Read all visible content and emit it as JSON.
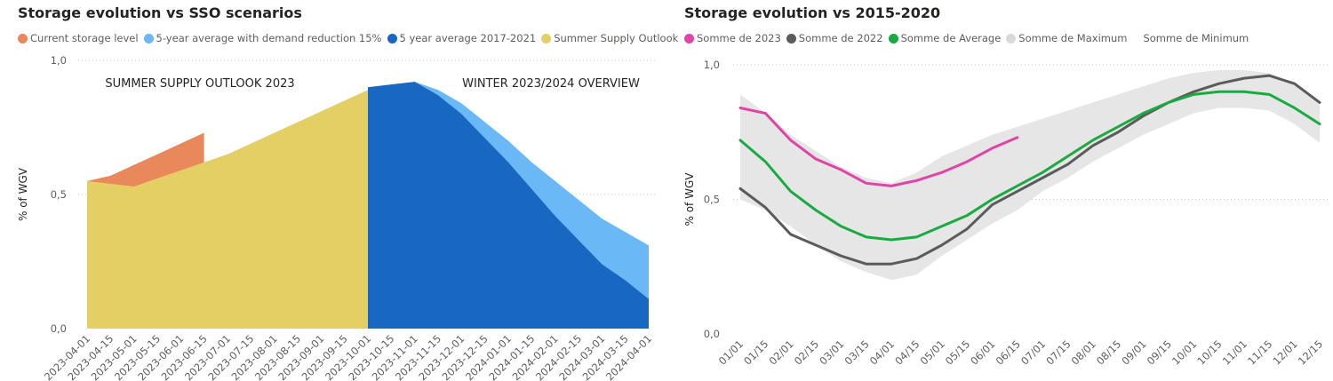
{
  "chart_data": [
    {
      "type": "area",
      "title": "Storage evolution vs SSO scenarios",
      "ylabel": "% of WGV",
      "ylim": [
        0,
        1
      ],
      "yticks": [
        "0,0",
        "0,5",
        "1,0"
      ],
      "annotations": [
        "SUMMER SUPPLY OUTLOOK 2023",
        "WINTER 2023/2024 OVERVIEW"
      ],
      "x": [
        "2023-04-01",
        "2023-04-15",
        "2023-05-01",
        "2023-05-15",
        "2023-06-01",
        "2023-06-15",
        "2023-07-01",
        "2023-07-15",
        "2023-08-01",
        "2023-08-15",
        "2023-09-01",
        "2023-09-15",
        "2023-10-01",
        "2023-10-15",
        "2023-11-01",
        "2023-11-15",
        "2023-12-01",
        "2023-12-15",
        "2024-01-01",
        "2024-01-15",
        "2024-02-01",
        "2024-02-15",
        "2024-03-01",
        "2024-03-15",
        "2024-04-01"
      ],
      "series": [
        {
          "name": "Current storage level",
          "color": "#E8885B",
          "values": [
            0.55,
            0.57,
            0.61,
            0.65,
            0.69,
            0.73,
            null,
            null,
            null,
            null,
            null,
            null,
            null,
            null,
            null,
            null,
            null,
            null,
            null,
            null,
            null,
            null,
            null,
            null,
            null
          ]
        },
        {
          "name": "5-year average with demand reduction 15%",
          "color": "#6BB8F7",
          "values": [
            null,
            null,
            null,
            null,
            null,
            null,
            null,
            null,
            null,
            null,
            null,
            null,
            0.9,
            0.91,
            0.92,
            0.89,
            0.84,
            0.77,
            0.7,
            0.62,
            0.55,
            0.48,
            0.41,
            0.36,
            0.31
          ]
        },
        {
          "name": "5 year average 2017-2021",
          "color": "#1868C1",
          "values": [
            null,
            null,
            null,
            null,
            null,
            null,
            null,
            null,
            null,
            null,
            null,
            null,
            0.9,
            0.91,
            0.92,
            0.87,
            0.8,
            0.71,
            0.62,
            0.52,
            0.42,
            0.33,
            0.24,
            0.18,
            0.11
          ]
        },
        {
          "name": "Summer Supply Outlook",
          "color": "#E4CF65",
          "values": [
            0.55,
            0.54,
            0.53,
            0.56,
            0.59,
            0.62,
            0.65,
            0.69,
            0.73,
            0.77,
            0.81,
            0.85,
            0.89,
            null,
            null,
            null,
            null,
            null,
            null,
            null,
            null,
            null,
            null,
            null,
            null
          ]
        }
      ]
    },
    {
      "type": "line",
      "title": "Storage evolution vs 2015-2020",
      "ylabel": "% of WGV",
      "ylim": [
        0,
        1
      ],
      "yticks": [
        "0,0",
        "0,5",
        "1,0"
      ],
      "x": [
        "01/01",
        "01/15",
        "02/01",
        "02/15",
        "03/01",
        "03/15",
        "04/01",
        "04/15",
        "05/01",
        "05/15",
        "06/01",
        "06/15",
        "07/01",
        "07/15",
        "08/01",
        "08/15",
        "09/01",
        "09/15",
        "10/01",
        "10/15",
        "11/01",
        "11/15",
        "12/01",
        "12/15"
      ],
      "series": [
        {
          "name": "Somme de 2023",
          "color": "#E044A7",
          "values": [
            0.84,
            0.82,
            0.72,
            0.65,
            0.61,
            0.56,
            0.55,
            0.57,
            0.6,
            0.64,
            0.69,
            0.73,
            null,
            null,
            null,
            null,
            null,
            null,
            null,
            null,
            null,
            null,
            null,
            null
          ]
        },
        {
          "name": "Somme de 2022",
          "color": "#5B5B5B",
          "values": [
            0.54,
            0.47,
            0.37,
            0.33,
            0.29,
            0.26,
            0.26,
            0.28,
            0.33,
            0.39,
            0.48,
            0.53,
            0.58,
            0.63,
            0.7,
            0.75,
            0.81,
            0.86,
            0.9,
            0.93,
            0.95,
            0.96,
            0.93,
            0.86
          ]
        },
        {
          "name": "Somme de Average",
          "color": "#1AAB40",
          "values": [
            0.72,
            0.64,
            0.53,
            0.46,
            0.4,
            0.36,
            0.35,
            0.36,
            0.4,
            0.44,
            0.5,
            0.55,
            0.6,
            0.66,
            0.72,
            0.77,
            0.82,
            0.86,
            0.89,
            0.9,
            0.9,
            0.89,
            0.84,
            0.78
          ]
        },
        {
          "name": "Somme de Maximum",
          "color": "#D9D9D9",
          "values": [
            0.89,
            0.82,
            0.74,
            0.68,
            0.62,
            0.58,
            0.56,
            0.6,
            0.66,
            0.7,
            0.74,
            0.77,
            0.8,
            0.83,
            0.86,
            0.89,
            0.92,
            0.95,
            0.97,
            0.98,
            0.98,
            0.97,
            0.93,
            0.86
          ]
        },
        {
          "name": "Somme de Minimum",
          "color": "#D9D9D9",
          "values": [
            0.5,
            0.46,
            0.4,
            0.33,
            0.27,
            0.23,
            0.2,
            0.22,
            0.29,
            0.35,
            0.41,
            0.46,
            0.53,
            0.58,
            0.64,
            0.69,
            0.74,
            0.78,
            0.82,
            0.84,
            0.84,
            0.83,
            0.78,
            0.71
          ]
        }
      ]
    }
  ]
}
